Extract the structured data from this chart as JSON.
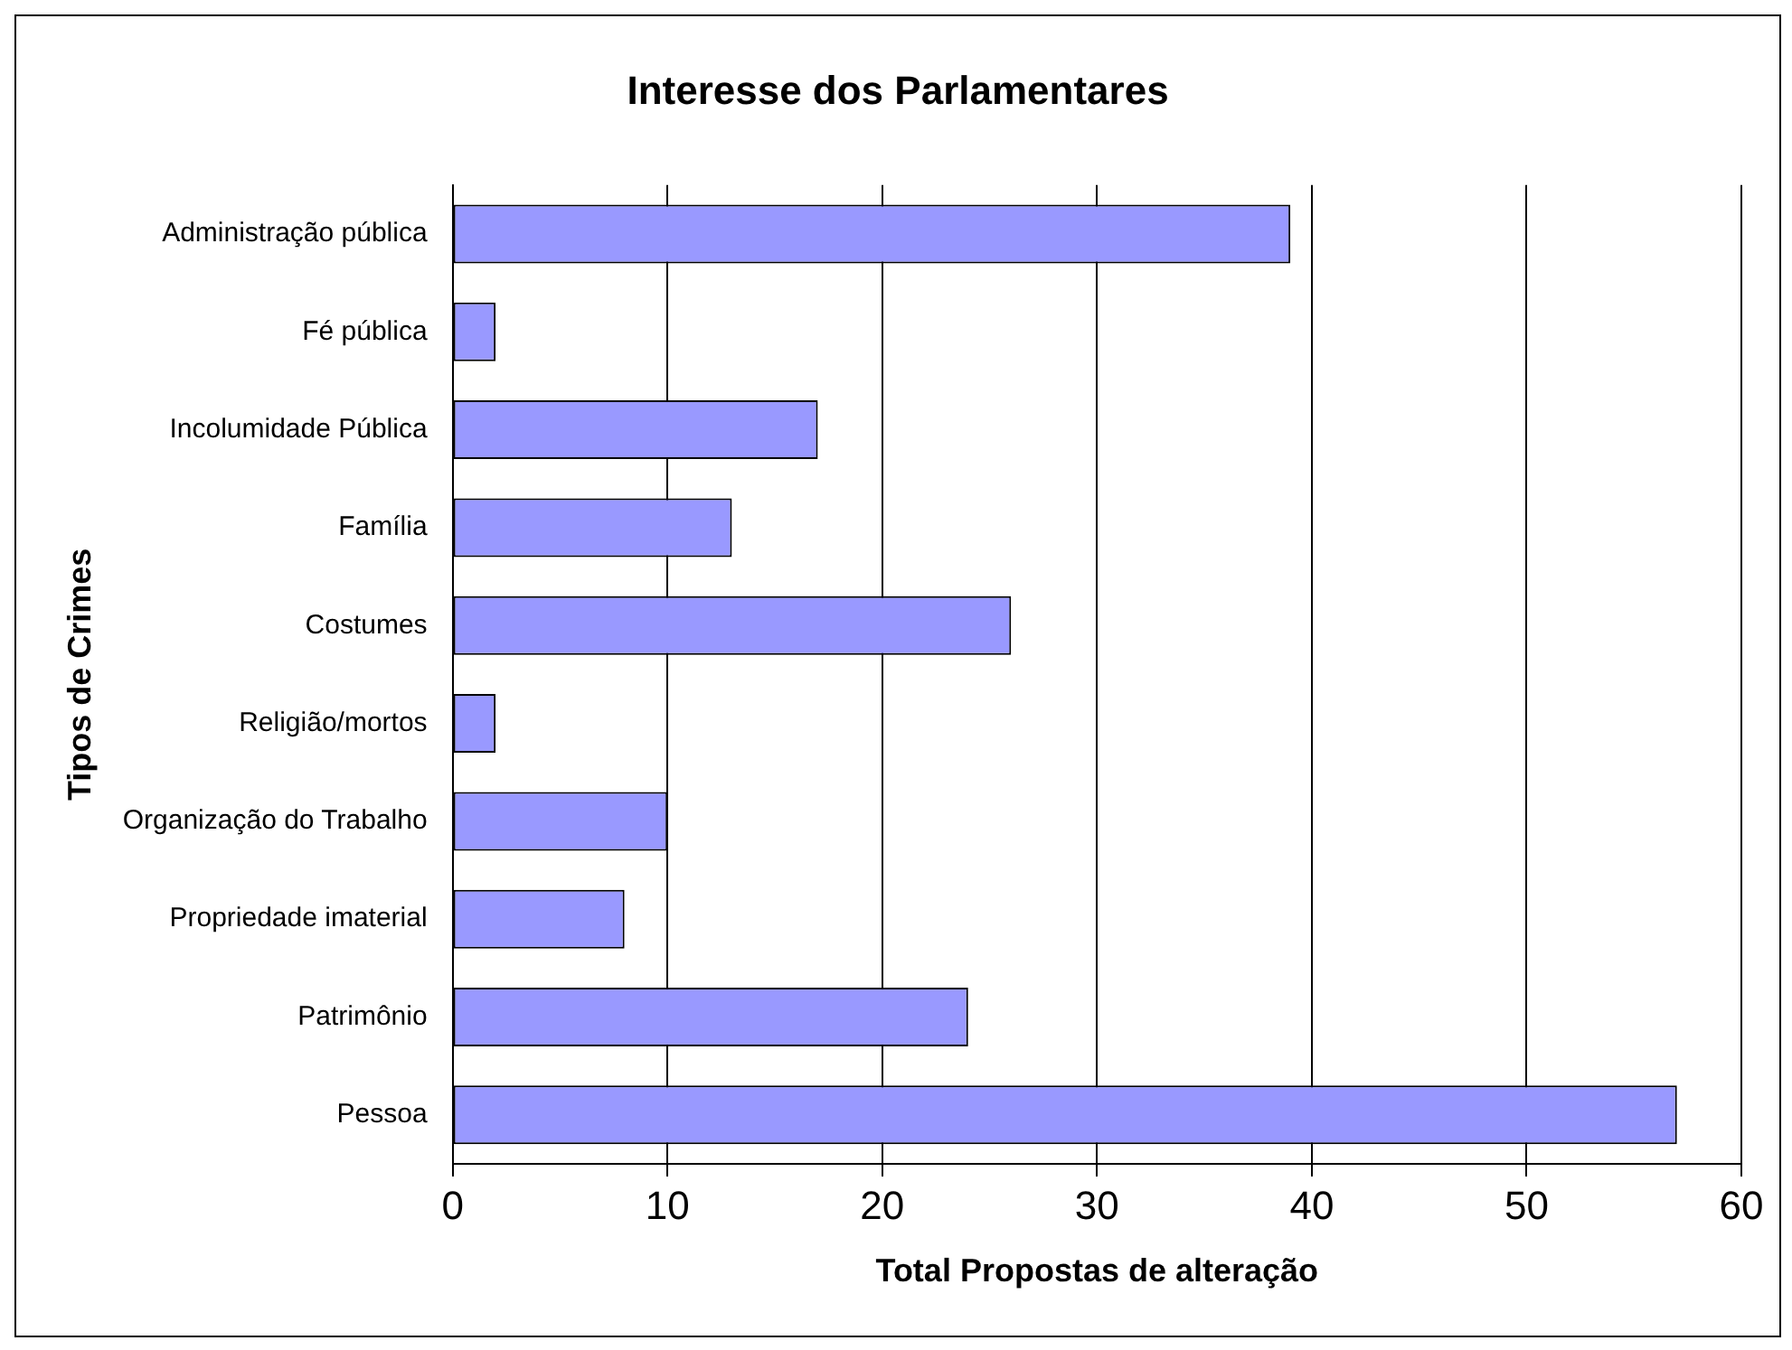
{
  "chart_data": {
    "type": "bar",
    "orientation": "horizontal",
    "title": "Interesse dos Parlamentares",
    "xlabel": "Total Propostas de alteração",
    "ylabel": "Tipos de Crimes",
    "categories": [
      "Administração pública",
      "Fé pública",
      "Incolumidade Pública",
      "Família",
      "Costumes",
      "Religião/mortos",
      "Organização do Trabalho",
      "Propriedade imaterial",
      "Patrimônio",
      "Pessoa"
    ],
    "values": [
      39,
      2,
      17,
      13,
      26,
      2,
      10,
      8,
      24,
      57
    ],
    "color": "#9999ff",
    "xlim": [
      0,
      60
    ],
    "xticks": [
      0,
      10,
      20,
      30,
      40,
      50,
      60
    ],
    "grid": "x",
    "legend": false
  }
}
